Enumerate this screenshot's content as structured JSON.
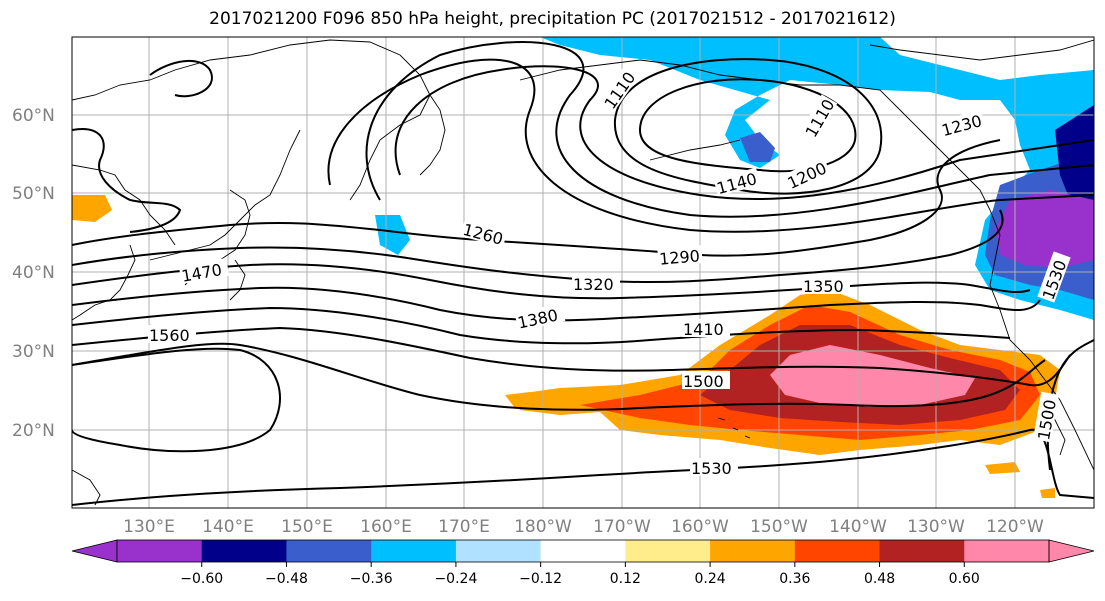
{
  "title": "2017021200 F096 850 hPa height, precipitation PC (2017021512 - 2017021612)",
  "lat_labels": [
    "60°N",
    "50°N",
    "40°N",
    "30°N",
    "20°N"
  ],
  "lon_labels": [
    "130°E",
    "140°E",
    "150°E",
    "160°E",
    "170°E",
    "180°W",
    "170°W",
    "160°W",
    "150°W",
    "140°W",
    "130°W",
    "120°W"
  ],
  "contour_labels": [
    "1110",
    "1110",
    "1140",
    "1200",
    "1230",
    "1260",
    "1290",
    "1320",
    "1350",
    "1380",
    "1410",
    "1470",
    "1500",
    "1500",
    "1530",
    "1530",
    "1560"
  ],
  "colorbar": {
    "ticks": [
      "−0.60",
      "−0.48",
      "−0.36",
      "−0.24",
      "−0.12",
      "0.12",
      "0.24",
      "0.36",
      "0.48",
      "0.60"
    ],
    "colors": [
      "#9932cc",
      "#00008b",
      "#3a5fcd",
      "#00bfff",
      "#b0e2ff",
      "#ffffff",
      "#ffec8b",
      "#ffa500",
      "#ff4500",
      "#b22222",
      "#ff88aa"
    ]
  },
  "colors": {
    "grid": "#b0b0b0",
    "coast": "#000000",
    "contour": "#000000",
    "label_gray": "#808080"
  }
}
